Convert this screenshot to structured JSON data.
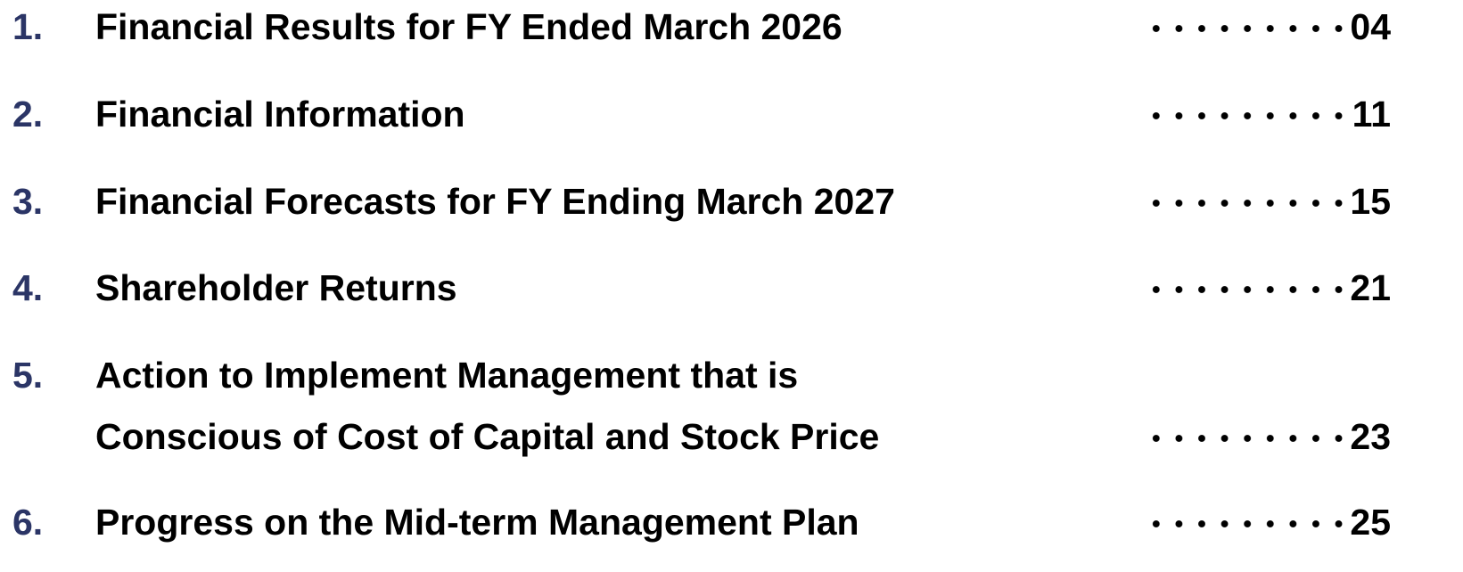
{
  "toc": {
    "items": [
      {
        "number": "1.",
        "lines": [
          "Financial Results for FY Ended March 2026"
        ],
        "page": "04"
      },
      {
        "number": "2.",
        "lines": [
          "Financial Information"
        ],
        "page": "11"
      },
      {
        "number": "3.",
        "lines": [
          "Financial Forecasts for FY Ending March 2027"
        ],
        "page": "15"
      },
      {
        "number": "4.",
        "lines": [
          "Shareholder Returns"
        ],
        "page": "21"
      },
      {
        "number": "5.",
        "lines": [
          "Action to Implement Management that is",
          "Conscious of Cost of Capital and Stock Price"
        ],
        "page": "23"
      },
      {
        "number": "6.",
        "lines": [
          "Progress on the Mid-term Management Plan"
        ],
        "page": "25"
      }
    ]
  }
}
